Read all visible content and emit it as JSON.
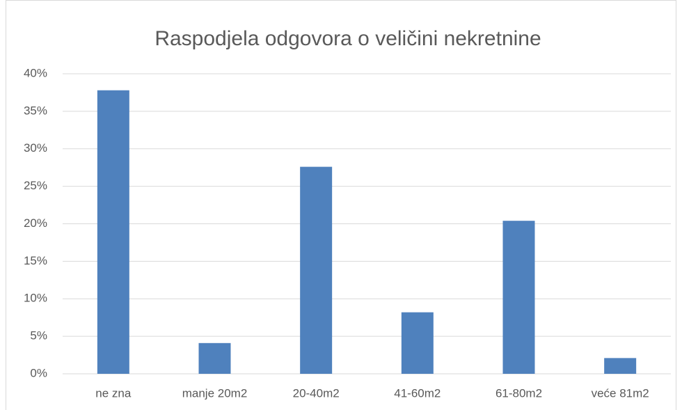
{
  "chart_data": {
    "type": "bar",
    "title": "Raspodjela odgovora o veličini nekretnine",
    "categories": [
      "ne zna",
      "manje 20m2",
      "20-40m2",
      "41-60m2",
      "61-80m2",
      "veće 81m2"
    ],
    "values": [
      37.8,
      4.1,
      27.6,
      8.2,
      20.4,
      2.1
    ],
    "color": "#4f81bd",
    "ylim": [
      0,
      40
    ],
    "yticks": [
      {
        "value": 0,
        "label": "0%"
      },
      {
        "value": 5,
        "label": "5%"
      },
      {
        "value": 10,
        "label": "10%"
      },
      {
        "value": 15,
        "label": "15%"
      },
      {
        "value": 20,
        "label": "20%"
      },
      {
        "value": 25,
        "label": "25%"
      },
      {
        "value": 30,
        "label": "30%"
      },
      {
        "value": 35,
        "label": "35%"
      },
      {
        "value": 40,
        "label": "40%"
      }
    ],
    "grid": true
  }
}
